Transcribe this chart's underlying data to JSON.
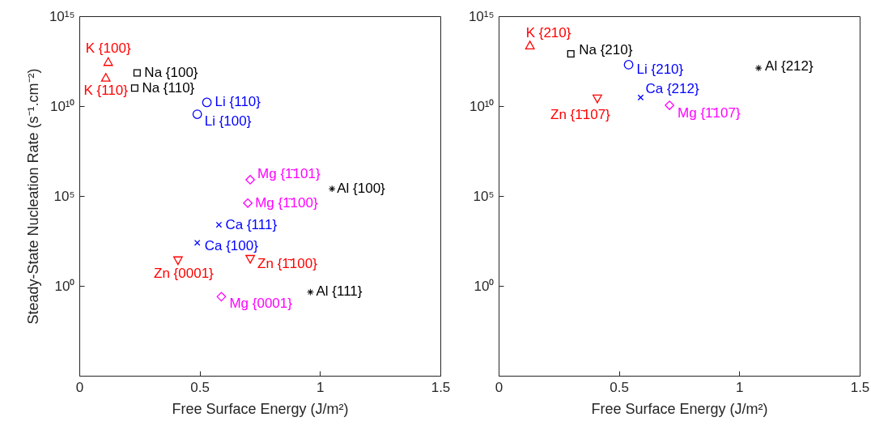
{
  "chart_data": [
    {
      "type": "scatter",
      "xlabel": "Free Surface Energy (J/m²)",
      "ylabel": "Steady-State Nucleation Rate (s⁻¹.cm⁻²)",
      "log": "y",
      "xlim": [
        0,
        1.5
      ],
      "xticks": [
        0,
        0.5,
        1,
        1.5
      ],
      "ylim": [
        1e-05,
        1000000000000000.0
      ],
      "yticks": [
        {
          "value": 1,
          "label": "10⁰"
        },
        {
          "value": 100000.0,
          "label": "10⁵"
        },
        {
          "value": 10000000000.0,
          "label": "10¹⁰"
        },
        {
          "value": 1000000000000000.0,
          "label": "10¹⁵"
        }
      ],
      "series": [
        {
          "color": "#ff0000",
          "marker": "triangle",
          "x": [
            0.12,
            0.11
          ],
          "values": [
            3000000000000.0,
            400000000000.0
          ]
        },
        {
          "color": "#000000",
          "marker": "square",
          "x": [
            0.24,
            0.23
          ],
          "values": [
            700000000000.0,
            100000000000.0
          ]
        },
        {
          "color": "#0000ff",
          "marker": "circle",
          "x": [
            0.53,
            0.49
          ],
          "values": [
            16000000000.0,
            3500000000.0
          ]
        },
        {
          "color": "#ff00ff",
          "marker": "diamond",
          "x": [
            0.71,
            0.7,
            0.59
          ],
          "values": [
            800000.0,
            40000.0,
            0.25
          ]
        },
        {
          "color": "#000000",
          "marker": "star",
          "x": [
            1.05,
            0.96
          ],
          "values": [
            250000.0,
            0.45
          ]
        },
        {
          "color": "#0000ff",
          "marker": "cross",
          "x": [
            0.58,
            0.49
          ],
          "values": [
            2500,
            250
          ]
        },
        {
          "color": "#ff0000",
          "marker": "triangle-down",
          "x": [
            0.41,
            0.71
          ],
          "values": [
            25,
            30
          ]
        }
      ],
      "annotations": [
        {
          "text": "K {100}",
          "x": 0.12,
          "y": 3000000000000.0
        },
        {
          "text": "K {110}",
          "x": 0.11,
          "y": 400000000000.0
        },
        {
          "text": "Na {100}",
          "x": 0.24,
          "y": 700000000000.0
        },
        {
          "text": "Na {110}",
          "x": 0.23,
          "y": 100000000000.0
        },
        {
          "text": "Li {110}",
          "x": 0.53,
          "y": 16000000000.0
        },
        {
          "text": "Li {100}",
          "x": 0.49,
          "y": 3500000000.0
        },
        {
          "text": "Mg {1̄101}",
          "x": 0.71,
          "y": 800000.0
        },
        {
          "text": "Al {100}",
          "x": 1.05,
          "y": 250000.0
        },
        {
          "text": "Mg {1̄100}",
          "x": 0.7,
          "y": 40000.0
        },
        {
          "text": "Ca {111}",
          "x": 0.58,
          "y": 2500
        },
        {
          "text": "Ca {100}",
          "x": 0.49,
          "y": 250
        },
        {
          "text": "Zn {0001}",
          "x": 0.41,
          "y": 25
        },
        {
          "text": "Zn {1̄100}",
          "x": 0.71,
          "y": 30
        },
        {
          "text": "Mg {0001}",
          "x": 0.59,
          "y": 0.25
        },
        {
          "text": "Al {111}",
          "x": 0.96,
          "y": 0.45
        }
      ]
    },
    {
      "type": "scatter",
      "xlabel": "Free Surface Energy (J/m²)",
      "log": "y",
      "xlim": [
        0,
        1.5
      ],
      "xticks": [
        0,
        0.5,
        1,
        1.5
      ],
      "ylim": [
        1e-05,
        1000000000000000.0
      ],
      "yticks": [
        {
          "value": 1,
          "label": "10⁰"
        },
        {
          "value": 100000.0,
          "label": "10⁵"
        },
        {
          "value": 10000000000.0,
          "label": "10¹⁰"
        },
        {
          "value": 1000000000000000.0,
          "label": "10¹⁵"
        }
      ],
      "series": [
        {
          "color": "#ff0000",
          "marker": "triangle",
          "x": [
            0.13
          ],
          "values": [
            25000000000000.0
          ]
        },
        {
          "color": "#000000",
          "marker": "square",
          "x": [
            0.3
          ],
          "values": [
            8000000000000.0
          ]
        },
        {
          "color": "#0000ff",
          "marker": "circle",
          "x": [
            0.54
          ],
          "values": [
            2000000000000.0
          ]
        },
        {
          "color": "#000000",
          "marker": "star",
          "x": [
            1.08
          ],
          "values": [
            1300000000000.0
          ]
        },
        {
          "color": "#0000ff",
          "marker": "cross",
          "x": [
            0.59
          ],
          "values": [
            30000000000.0
          ]
        },
        {
          "color": "#ff0000",
          "marker": "triangle-down",
          "x": [
            0.41
          ],
          "values": [
            25000000000.0
          ]
        },
        {
          "color": "#ff00ff",
          "marker": "diamond",
          "x": [
            0.71
          ],
          "values": [
            11000000000.0
          ]
        }
      ],
      "annotations": [
        {
          "text": "K {210}",
          "x": 0.13,
          "y": 25000000000000.0
        },
        {
          "text": "Na {210}",
          "x": 0.3,
          "y": 8000000000000.0
        },
        {
          "text": "Li {210}",
          "x": 0.54,
          "y": 2000000000000.0
        },
        {
          "text": "Al {212}",
          "x": 1.08,
          "y": 1300000000000.0
        },
        {
          "text": "Ca {212}",
          "x": 0.59,
          "y": 30000000000.0
        },
        {
          "text": "Zn {1̄107}",
          "x": 0.41,
          "y": 25000000000.0
        },
        {
          "text": "Mg {1̄107}",
          "x": 0.71,
          "y": 11000000000.0
        }
      ]
    }
  ]
}
